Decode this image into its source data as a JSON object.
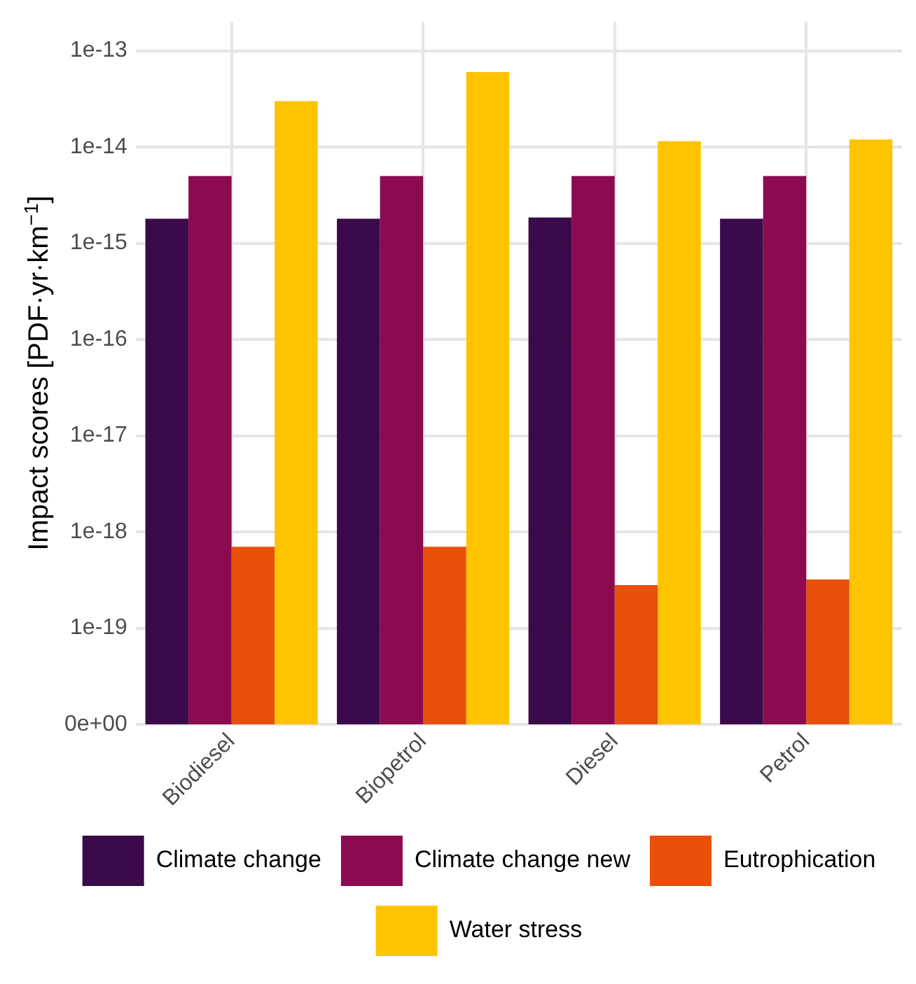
{
  "chart_data": {
    "type": "bar",
    "ylabel": "Impact scores [PDF·yr·km$^{−1}$]",
    "categories": [
      "Biodiesel",
      "Biopetrol",
      "Diesel",
      "Petrol"
    ],
    "series": [
      {
        "name": "Climate change",
        "color": "#3b0a4a",
        "values": [
          1.8e-15,
          1.8e-15,
          1.85e-15,
          1.8e-15
        ]
      },
      {
        "name": "Climate change new",
        "color": "#8b0a50",
        "values": [
          5e-15,
          5e-15,
          5e-15,
          5e-15
        ]
      },
      {
        "name": "Eutrophication",
        "color": "#e8500a",
        "values": [
          7e-19,
          7e-19,
          2.8e-19,
          3.2e-19
        ]
      },
      {
        "name": "Water stress",
        "color": "#ffc300",
        "values": [
          3e-14,
          6e-14,
          1.15e-14,
          1.2e-14
        ]
      }
    ],
    "log": true,
    "ylim": [
      1e-20,
      2e-13
    ],
    "yticks": [
      {
        "value": 1e-20,
        "label": "0e+00"
      },
      {
        "value": 1e-19,
        "label": "1e-19"
      },
      {
        "value": 1e-18,
        "label": "1e-18"
      },
      {
        "value": 1e-17,
        "label": "1e-17"
      },
      {
        "value": 1e-16,
        "label": "1e-16"
      },
      {
        "value": 1e-15,
        "label": "1e-15"
      },
      {
        "value": 1e-14,
        "label": "1e-14"
      },
      {
        "value": 1e-13,
        "label": "1e-13"
      }
    ],
    "grid": true,
    "legend": "bottom"
  }
}
